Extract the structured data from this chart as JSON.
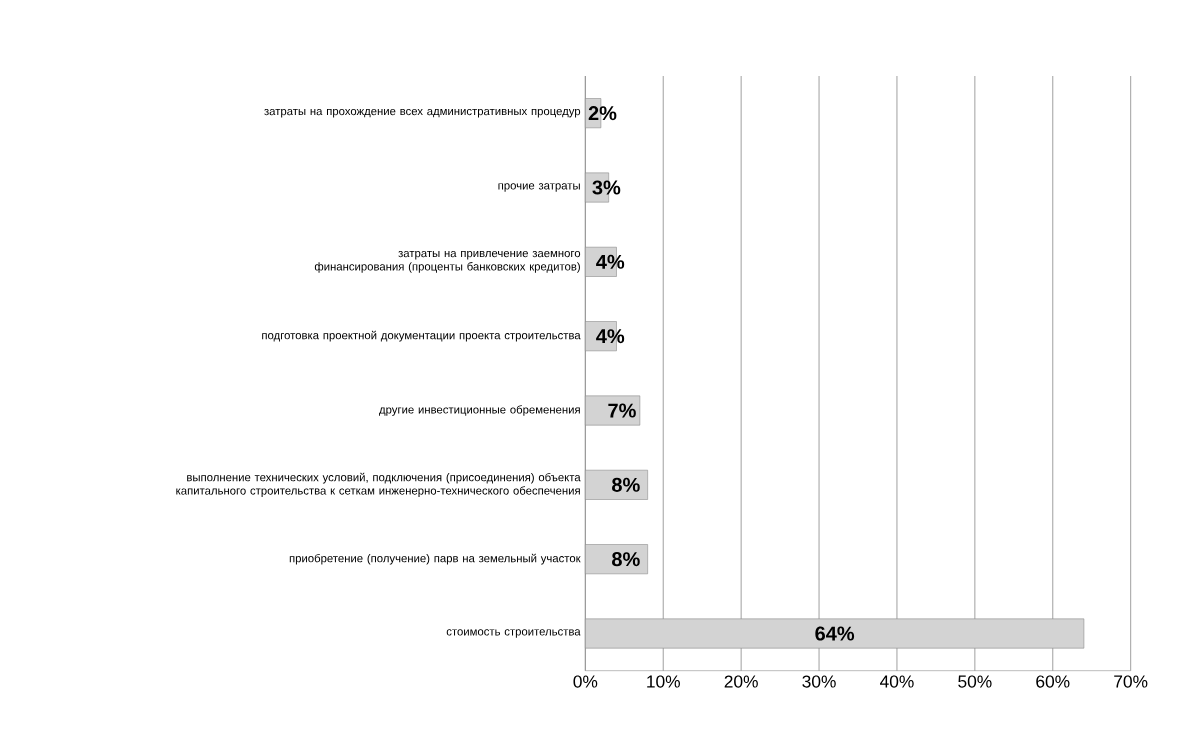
{
  "chart_data": {
    "type": "bar",
    "orientation": "horizontal",
    "categories": [
      "затраты на прохождение всех административных процедур",
      "прочие затраты",
      "затраты на привлечение заемного финансирования (проценты банковских кредитов)",
      "подготовка проектной документации проекта строительства",
      "другие инвестиционные обременения",
      "выполнение технических условий, подключения (присоединения) объекта капитального строительства к сеткам инженерно-технического обеспечения",
      "приобретение (получение) парв на земельный участок",
      "стоимость строительства"
    ],
    "values": [
      2,
      3,
      4,
      4,
      7,
      8,
      8,
      64
    ],
    "value_labels": [
      "2%",
      "3%",
      "4%",
      "4%",
      "7%",
      "8%",
      "8%",
      "64%"
    ],
    "color": "#d3d3d3",
    "xlim": [
      0,
      70
    ],
    "xticks": [
      {
        "value": 0,
        "label": "0%"
      },
      {
        "value": 10,
        "label": "10%"
      },
      {
        "value": 20,
        "label": "20%"
      },
      {
        "value": 30,
        "label": "30%"
      },
      {
        "value": 40,
        "label": "40%"
      },
      {
        "value": 50,
        "label": "50%"
      },
      {
        "value": 60,
        "label": "60%"
      },
      {
        "value": 70,
        "label": "70%"
      }
    ],
    "grid": "x"
  }
}
